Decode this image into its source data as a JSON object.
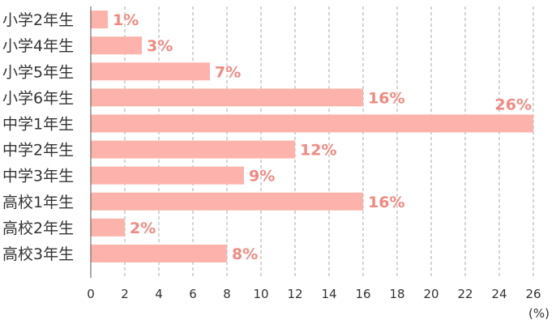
{
  "colors": {
    "bar": "#fdb3ab",
    "value_text": "#f08a80",
    "grid": "#aaaaaa",
    "axis": "#555555",
    "text": "#333333"
  },
  "chart_data": {
    "type": "bar",
    "orientation": "horizontal",
    "categories": [
      "小学2年生",
      "小学4年生",
      "小学5年生",
      "小学6年生",
      "中学1年生",
      "中学2年生",
      "中学3年生",
      "高校1年生",
      "高校2年生",
      "高校3年生"
    ],
    "values": [
      1,
      3,
      7,
      16,
      26,
      12,
      9,
      16,
      2,
      8
    ],
    "value_labels": [
      "1%",
      "3%",
      "7%",
      "16%",
      "26%",
      "12%",
      "9%",
      "16%",
      "2%",
      "8%"
    ],
    "xlim": [
      0,
      26
    ],
    "xticks": [
      0,
      2,
      4,
      6,
      8,
      10,
      12,
      14,
      16,
      18,
      20,
      22,
      24,
      26
    ],
    "xtick_labels": [
      "0",
      "2",
      "4",
      "6",
      "8",
      "10",
      "12",
      "14",
      "16",
      "18",
      "20",
      "22",
      "24",
      "26"
    ],
    "unit": "(%)",
    "grid": "vertical-dashed",
    "legend": "none"
  }
}
